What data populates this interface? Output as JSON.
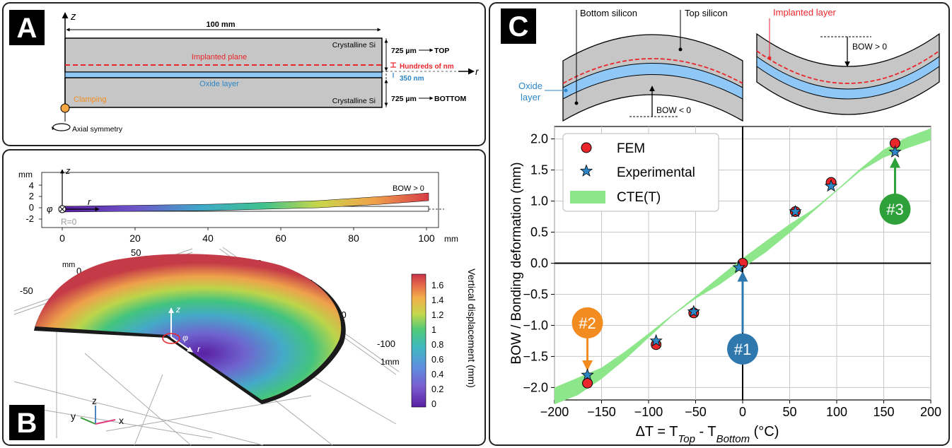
{
  "panel_a": {
    "letter": "A",
    "width_label": "100 mm",
    "z_axis": "z",
    "r_axis": "r",
    "crystalline_top": "Crystalline Si",
    "crystalline_bottom": "Crystalline Si",
    "implanted_plane": "Implanted plane",
    "oxide_layer": "Oxide layer",
    "clamping": "Clamping",
    "axial_symmetry": "Axial symmetry",
    "top_thickness": "725 µm",
    "top_label": "TOP",
    "hundreds_nm": "Hundreds of nm",
    "oxide_thickness": "350 nm",
    "bottom_thickness": "725 µm",
    "bottom_label": "BOTTOM"
  },
  "panel_b": {
    "letter": "B",
    "side_view": {
      "unit_mm": "mm",
      "y_ticks": [
        "4",
        "2",
        "0",
        "-2"
      ],
      "x_ticks": [
        "0",
        "20",
        "40",
        "60",
        "80",
        "100"
      ],
      "x_unit": "mm",
      "z_axis": "z",
      "r_axis": "r",
      "phi": "φ",
      "r_zero": "R=0",
      "bow": "BOW > 0"
    },
    "iso_view": {
      "ticks_back_left": [
        "mm",
        "0",
        "50",
        "-50"
      ],
      "ticks_back_right": [
        "50",
        "0",
        "mm",
        "-50",
        "-100",
        "1mm"
      ],
      "z_label": "z",
      "r_label": "r",
      "phi": "φ"
    },
    "triad": {
      "z": "z",
      "y": "y",
      "x": "x"
    },
    "colorbar": {
      "title": "Vertical displacement (mm)",
      "ticks": [
        "1.6",
        "1.4",
        "1.2",
        "1",
        "0.8",
        "0.6",
        "0.4",
        "0.2",
        "0"
      ]
    }
  },
  "panel_c": {
    "letter": "C",
    "schematic": {
      "bottom_silicon": "Bottom silicon",
      "top_silicon": "Top silicon",
      "oxide_layer": "Oxide\nlayer",
      "bow_negative": "BOW < 0",
      "implanted_layer": "Implanted layer",
      "bow_positive": "BOW > 0"
    },
    "markers": [
      "#1",
      "#2",
      "#3"
    ],
    "colors": {
      "fem": "#e8262b",
      "experimental": "#2d86c6",
      "cte_band": "#8ee68b",
      "marker1": "#2e78ad",
      "marker2": "#f28c21",
      "marker3": "#2fa13a",
      "oxide": "#8fc8f7",
      "silicon": "#c6c6c6"
    }
  },
  "chart_data": {
    "type": "scatter",
    "xlabel_main": "ΔT = T",
    "xlabel_top_sub": "Top",
    "xlabel_minus": " - T",
    "xlabel_bottom_sub": "Bottom",
    "xlabel_unit": " (°C)",
    "ylabel": "BOW / Bonding deformation (mm)",
    "xlim": [
      -200,
      200
    ],
    "ylim": [
      -2.2,
      2.2
    ],
    "x_ticks": [
      -200,
      -150,
      -100,
      -50,
      0,
      50,
      100,
      150,
      200
    ],
    "y_ticks": [
      -2.0,
      -1.5,
      -1.0,
      -0.5,
      0.0,
      0.5,
      1.0,
      1.5,
      2.0
    ],
    "x_tick_labels": [
      "−200",
      "−150",
      "−100",
      "−50",
      "0",
      "50",
      "100",
      "150",
      "200"
    ],
    "y_tick_labels": [
      "−2.0",
      "−1.5",
      "−1.0",
      "−0.5",
      "0.0",
      "0.5",
      "1.0",
      "1.5",
      "2.0"
    ],
    "grid": true,
    "legend_position": "top-left",
    "series": [
      {
        "name": "FEM",
        "x": [
          -165,
          -92,
          -52,
          0,
          56,
          94,
          162
        ],
        "y": [
          -1.93,
          -1.31,
          -0.8,
          0.0,
          0.83,
          1.3,
          1.93
        ]
      },
      {
        "name": "Experimental",
        "x": [
          -165,
          -92,
          -52,
          -4,
          56,
          94,
          162
        ],
        "y": [
          -1.8,
          -1.25,
          -0.78,
          -0.07,
          0.83,
          1.24,
          1.79
        ]
      },
      {
        "name": "CTE(T)",
        "type": "band",
        "x": [
          -200,
          -175,
          -150,
          -125,
          -100,
          -75,
          -50,
          -25,
          0,
          25,
          50,
          75,
          100,
          125,
          150,
          175,
          200
        ],
        "lo": [
          -2.27,
          -2.12,
          -1.86,
          -1.55,
          -1.2,
          -0.85,
          -0.57,
          -0.35,
          -0.08,
          0.18,
          0.49,
          0.83,
          1.16,
          1.48,
          1.7,
          1.85,
          1.98
        ],
        "hi": [
          -2.0,
          -1.84,
          -1.68,
          -1.42,
          -1.13,
          -0.83,
          -0.53,
          -0.22,
          0.08,
          0.36,
          0.63,
          0.87,
          1.18,
          1.52,
          1.83,
          2.03,
          2.17
        ]
      }
    ]
  }
}
